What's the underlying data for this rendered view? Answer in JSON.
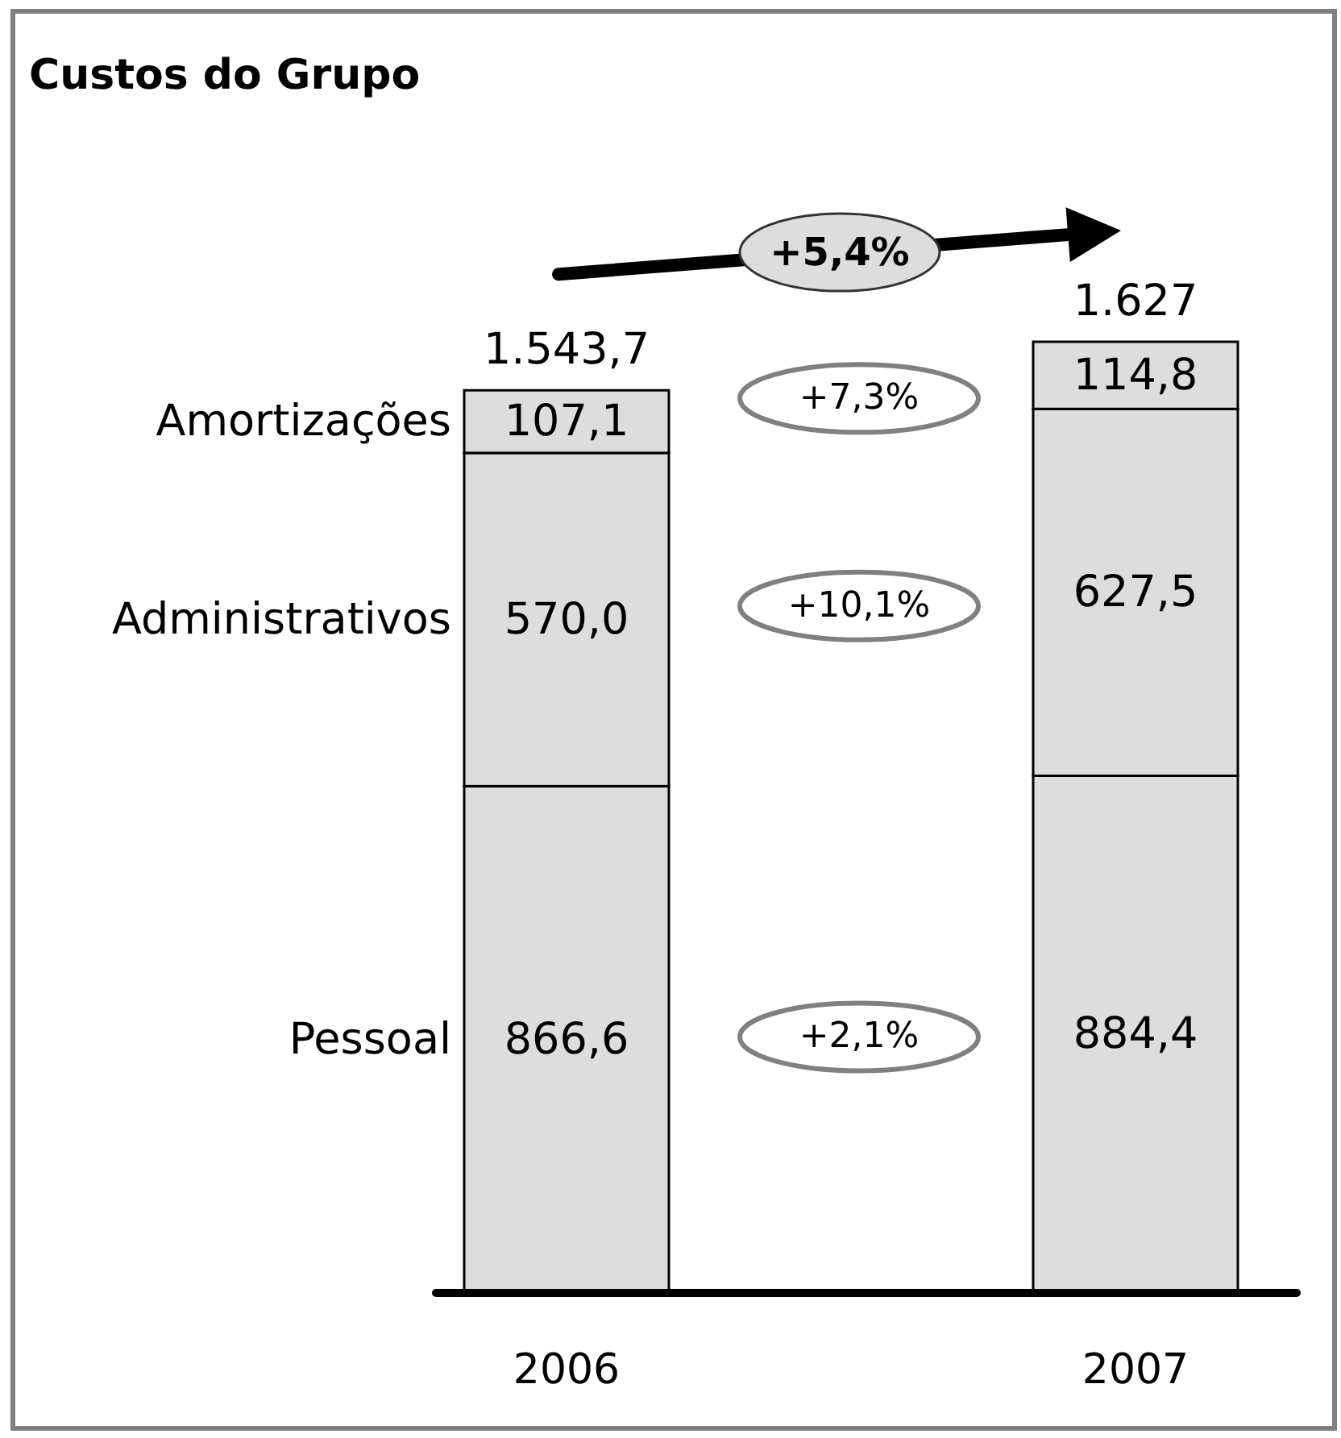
{
  "chart_data": {
    "type": "bar",
    "title": "Custos do Grupo",
    "categories": [
      "2006",
      "2007"
    ],
    "stacked": true,
    "series": [
      {
        "name": "Pessoal",
        "color": "#dddddd",
        "values": [
          866.6,
          884.4
        ],
        "value_labels": [
          "866,6",
          "884,4"
        ]
      },
      {
        "name": "Administrativos",
        "color": "#dddddd",
        "values": [
          570.0,
          627.5
        ],
        "value_labels": [
          "570,0",
          "627,5"
        ]
      },
      {
        "name": "Amortizações",
        "color": "#dddddd",
        "values": [
          107.1,
          114.8
        ],
        "value_labels": [
          "107,1",
          "114,8"
        ]
      }
    ],
    "totals": [
      "1.543,7",
      "1.627"
    ],
    "tick_labels": "x",
    "annotations": [
      "+5,4%",
      "+7,3%",
      "+10,1%",
      "+2,1%"
    ]
  }
}
